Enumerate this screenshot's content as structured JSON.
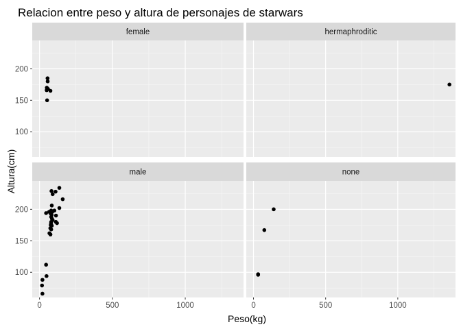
{
  "chart_data": {
    "type": "scatter",
    "title": "Relacion entre peso y altura de personajes de starwars",
    "xlabel": "Peso(kg)",
    "ylabel": "Altura(cm)",
    "xlim": [
      -50,
      1400
    ],
    "ylim": [
      60,
      245
    ],
    "x_ticks": [
      0,
      500,
      1000
    ],
    "x_tick_labels": [
      "0",
      "500",
      "1000"
    ],
    "y_ticks": [
      100,
      150,
      200
    ],
    "y_tick_labels": [
      "100",
      "150",
      "200"
    ],
    "grid": true,
    "facets": [
      {
        "name": "female",
        "points": [
          {
            "x": 55,
            "y": 185
          },
          {
            "x": 56,
            "y": 180
          },
          {
            "x": 50,
            "y": 170
          },
          {
            "x": 49,
            "y": 166
          },
          {
            "x": 58,
            "y": 168
          },
          {
            "x": 75,
            "y": 165
          },
          {
            "x": 52,
            "y": 150
          }
        ]
      },
      {
        "name": "hermaphroditic",
        "points": [
          {
            "x": 1358,
            "y": 175
          }
        ]
      },
      {
        "name": "male",
        "points": [
          {
            "x": 136,
            "y": 234
          },
          {
            "x": 82,
            "y": 229
          },
          {
            "x": 110,
            "y": 228
          },
          {
            "x": 90,
            "y": 224
          },
          {
            "x": 159,
            "y": 216
          },
          {
            "x": 84,
            "y": 206
          },
          {
            "x": 136,
            "y": 202
          },
          {
            "x": 80,
            "y": 198
          },
          {
            "x": 88,
            "y": 196
          },
          {
            "x": 102,
            "y": 198
          },
          {
            "x": 45,
            "y": 194
          },
          {
            "x": 66,
            "y": 196
          },
          {
            "x": 77,
            "y": 193
          },
          {
            "x": 83,
            "y": 191
          },
          {
            "x": 113,
            "y": 190
          },
          {
            "x": 80,
            "y": 188
          },
          {
            "x": 85,
            "y": 185
          },
          {
            "x": 90,
            "y": 183
          },
          {
            "x": 80,
            "y": 180
          },
          {
            "x": 112,
            "y": 180
          },
          {
            "x": 120,
            "y": 178
          },
          {
            "x": 79,
            "y": 178
          },
          {
            "x": 77,
            "y": 175
          },
          {
            "x": 84,
            "y": 174
          },
          {
            "x": 74,
            "y": 170
          },
          {
            "x": 80,
            "y": 168
          },
          {
            "x": 68,
            "y": 162
          },
          {
            "x": 75,
            "y": 160
          },
          {
            "x": 45,
            "y": 112
          },
          {
            "x": 48,
            "y": 94
          },
          {
            "x": 20,
            "y": 88
          },
          {
            "x": 17,
            "y": 79
          },
          {
            "x": 20,
            "y": 66
          }
        ]
      },
      {
        "name": "none",
        "points": [
          {
            "x": 140,
            "y": 200
          },
          {
            "x": 75,
            "y": 167
          },
          {
            "x": 32,
            "y": 97
          },
          {
            "x": 32,
            "y": 96
          }
        ]
      }
    ]
  }
}
